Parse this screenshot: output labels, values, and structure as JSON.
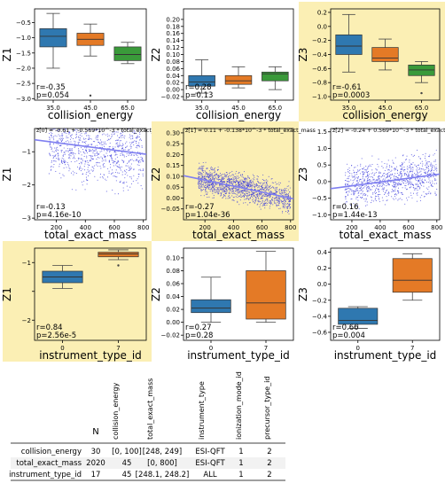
{
  "colors": {
    "blue": "#2f78b0",
    "orange": "#e47a26",
    "green": "#3a9a3a",
    "highlight": "#fbefb4",
    "scatter": "#3b3bdc",
    "fit": "#7f7ff0"
  },
  "chart_data": [
    {
      "type": "box",
      "id": "p1",
      "highlight": false,
      "xlabel": "collision_energy",
      "ylabel": "Z1",
      "categories": [
        "35.0",
        "45.0",
        "65.0"
      ],
      "ylim": [
        -3.05,
        -0.05
      ],
      "yticks": [
        -3.0,
        -2.5,
        -2.0,
        -1.5,
        -1.0,
        -0.5
      ],
      "ytick_labels": [
        "−3.0",
        "−2.5",
        "−2.0",
        "−1.5",
        "−1.0",
        "−0.5"
      ],
      "boxes": [
        {
          "min": -2.0,
          "q1": -1.3,
          "med": -0.95,
          "q3": -0.7,
          "max": -0.2
        },
        {
          "min": -1.6,
          "q1": -1.25,
          "med": -1.05,
          "q3": -0.85,
          "max": -0.55
        },
        {
          "min": -1.85,
          "q1": -1.75,
          "med": -1.55,
          "q3": -1.3,
          "max": -1.15
        }
      ],
      "outliers": [
        [
          1,
          -2.9
        ]
      ],
      "stat_lines": [
        "r=-0.35",
        "p=0.054"
      ]
    },
    {
      "type": "box",
      "id": "p2",
      "highlight": false,
      "xlabel": "collision_energy",
      "ylabel": "Z2",
      "categories": [
        "35.0",
        "45.0",
        "65.0"
      ],
      "ylim": [
        -0.03,
        0.23
      ],
      "yticks": [
        -0.02,
        0.0,
        0.02,
        0.04,
        0.06,
        0.08,
        0.1,
        0.12,
        0.14,
        0.16,
        0.18,
        0.2
      ],
      "ytick_labels": [
        "−0.02",
        "0.00",
        "0.02",
        "0.04",
        "0.06",
        "0.08",
        "0.10",
        "0.12",
        "0.14",
        "0.16",
        "0.18",
        "0.20"
      ],
      "boxes": [
        {
          "min": -0.01,
          "q1": 0.01,
          "med": 0.022,
          "q3": 0.04,
          "max": 0.085
        },
        {
          "min": 0.005,
          "q1": 0.015,
          "med": 0.025,
          "q3": 0.04,
          "max": 0.065
        },
        {
          "min": 0.0,
          "q1": 0.025,
          "med": 0.045,
          "q3": 0.05,
          "max": 0.065
        }
      ],
      "outliers": [],
      "stat_lines": [
        "r=0.28",
        "p=0.13"
      ]
    },
    {
      "type": "box",
      "id": "p3",
      "highlight": true,
      "xlabel": "collision_energy",
      "ylabel": "Z3",
      "categories": [
        "35.0",
        "45.0",
        "65.0"
      ],
      "ylim": [
        -1.05,
        0.25
      ],
      "yticks": [
        -1.0,
        -0.8,
        -0.6,
        -0.4,
        -0.2,
        0.0,
        0.2
      ],
      "ytick_labels": [
        "−1.0",
        "−0.8",
        "−0.6",
        "−0.4",
        "−0.2",
        "0.0",
        "0.2"
      ],
      "boxes": [
        {
          "min": -0.65,
          "q1": -0.4,
          "med": -0.28,
          "q3": -0.12,
          "max": 0.17
        },
        {
          "min": -0.62,
          "q1": -0.5,
          "med": -0.45,
          "q3": -0.3,
          "max": -0.18
        },
        {
          "min": -0.8,
          "q1": -0.7,
          "med": -0.62,
          "q3": -0.55,
          "max": -0.5
        }
      ],
      "outliers": [
        [
          2,
          -0.95
        ]
      ],
      "stat_lines": [
        "r=-0.61",
        "p=0.0003"
      ]
    },
    {
      "type": "scatter",
      "id": "p4",
      "highlight": false,
      "xlabel": "total_exact_mass",
      "ylabel": "Z1",
      "equation": "z[0] = -0.61 + -0.569*10^-3 * total_exact_mass",
      "xlim": [
        50,
        820
      ],
      "ylim": [
        -3.05,
        -0.3
      ],
      "xticks": [
        200,
        400,
        600,
        800
      ],
      "xtick_labels": [
        "200",
        "400",
        "600",
        "800"
      ],
      "yticks": [
        -3,
        -2,
        -1
      ],
      "ytick_labels": [
        "−3",
        "−2",
        "−1"
      ],
      "fit": {
        "intercept": -0.61,
        "slope": -0.000569
      },
      "cloud": {
        "center": -1.1,
        "spread": 0.55,
        "count": 900
      },
      "stat_lines": [
        "r=-0.13",
        "p=4.16e-10"
      ]
    },
    {
      "type": "scatter",
      "id": "p5",
      "highlight": true,
      "xlabel": "total_exact_mass",
      "ylabel": "Z2",
      "equation": "z[1] = 0.11 + -0.138*10^-3 * total_exact_mass",
      "xlim": [
        50,
        820
      ],
      "ylim": [
        -0.1,
        0.32
      ],
      "xticks": [
        200,
        400,
        600,
        800
      ],
      "xtick_labels": [
        "200",
        "400",
        "600",
        "800"
      ],
      "yticks": [
        -0.05,
        0.0,
        0.05,
        0.1,
        0.15,
        0.2,
        0.25,
        0.3
      ],
      "ytick_labels": [
        "−0.05",
        "0.00",
        "0.05",
        "0.10",
        "0.15",
        "0.20",
        "0.25",
        "0.30"
      ],
      "fit": {
        "intercept": 0.11,
        "slope": -0.000138
      },
      "cloud": {
        "center": 0.04,
        "spread": 0.035,
        "count": 1400
      },
      "stat_lines": [
        "r=-0.27",
        "p=1.04e-36"
      ]
    },
    {
      "type": "scatter",
      "id": "p6",
      "highlight": false,
      "xlabel": "total_exact_mass",
      "ylabel": "Z3",
      "equation": "z[2] = -0.24 + 0.569*10^-3 * total_exact_mass",
      "xlim": [
        50,
        820
      ],
      "ylim": [
        -1.15,
        1.6
      ],
      "xticks": [
        200,
        400,
        600,
        800
      ],
      "xtick_labels": [
        "200",
        "400",
        "600",
        "800"
      ],
      "yticks": [
        -1.0,
        -0.5,
        0.0,
        0.5,
        1.0,
        1.5
      ],
      "ytick_labels": [
        "−1.0",
        "−0.5",
        "0.0",
        "0.5",
        "1.0",
        "1.5"
      ],
      "fit": {
        "intercept": -0.24,
        "slope": 0.000569
      },
      "cloud": {
        "center": 0.05,
        "spread": 0.35,
        "count": 900
      },
      "stat_lines": [
        "r=0.16",
        "p=1.44e-13"
      ]
    },
    {
      "type": "box",
      "id": "p7",
      "highlight": true,
      "xlabel": "instrument_type_id",
      "ylabel": "Z1",
      "categories": [
        "0",
        "7"
      ],
      "ylim": [
        -2.35,
        -0.75
      ],
      "yticks": [
        -2.0,
        -1.5,
        -1.0
      ],
      "ytick_labels": [
        "−2",
        "",
        "−1"
      ],
      "boxes": [
        {
          "min": -1.45,
          "q1": -1.35,
          "med": -1.25,
          "q3": -1.15,
          "max": -1.05
        },
        {
          "min": -0.95,
          "q1": -0.9,
          "med": -0.85,
          "q3": -0.82,
          "max": -0.78
        }
      ],
      "outliers": [
        [
          1,
          -1.05
        ]
      ],
      "stat_lines": [
        "r=0.84",
        "p=2.56e-5"
      ]
    },
    {
      "type": "box",
      "id": "p8",
      "highlight": false,
      "xlabel": "instrument_type_id",
      "ylabel": "Z2",
      "categories": [
        "0",
        "7"
      ],
      "ylim": [
        -0.028,
        0.115
      ],
      "yticks": [
        -0.02,
        0.0,
        0.02,
        0.04,
        0.06,
        0.08,
        0.1
      ],
      "ytick_labels": [
        "−0.02",
        "0.00",
        "0.02",
        "0.04",
        "0.06",
        "0.08",
        "0.10"
      ],
      "boxes": [
        {
          "min": 0.0,
          "q1": 0.015,
          "med": 0.022,
          "q3": 0.035,
          "max": 0.07
        },
        {
          "min": 0.0,
          "q1": 0.005,
          "med": 0.03,
          "q3": 0.08,
          "max": 0.11
        }
      ],
      "outliers": [],
      "stat_lines": [
        "r=0.27",
        "p=0.28"
      ]
    },
    {
      "type": "box",
      "id": "p9",
      "highlight": false,
      "xlabel": "instrument_type_id",
      "ylabel": "Z3",
      "categories": [
        "0",
        "7"
      ],
      "ylim": [
        -0.7,
        0.45
      ],
      "yticks": [
        -0.6,
        -0.4,
        -0.2,
        0.0,
        0.2,
        0.4
      ],
      "ytick_labels": [
        "−0.6",
        "−0.4",
        "−0.2",
        "0.0",
        "0.2",
        "0.4"
      ],
      "boxes": [
        {
          "min": -0.55,
          "q1": -0.5,
          "med": -0.45,
          "q3": -0.3,
          "max": -0.28
        },
        {
          "min": -0.2,
          "q1": -0.1,
          "med": 0.05,
          "q3": 0.32,
          "max": 0.38
        }
      ],
      "outliers": [],
      "stat_lines": [
        "r=0.66",
        "p=0.004"
      ]
    }
  ],
  "table": {
    "headers": [
      "N",
      "collision_energy",
      "total_exact_mass",
      "instrument_type",
      "ionization_mode_id",
      "precursor_type_id"
    ],
    "rows": [
      {
        "label": "collision_energy",
        "cells": [
          "30",
          "[0, 100]",
          "[248, 249]",
          "ESI-QFT",
          "1",
          "2"
        ]
      },
      {
        "label": "total_exact_mass",
        "cells": [
          "2020",
          "45",
          "[0, 800]",
          "ESI-QFT",
          "1",
          "2"
        ]
      },
      {
        "label": "instrument_type_id",
        "cells": [
          "17",
          "45",
          "[248.1, 248.2]",
          "ALL",
          "1",
          "2"
        ]
      }
    ]
  }
}
